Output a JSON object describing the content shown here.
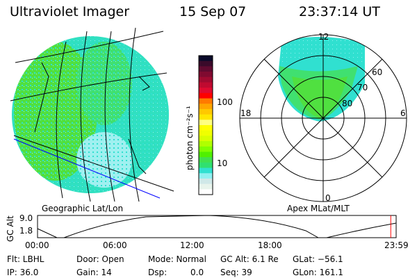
{
  "header": {
    "instrument": "Ultraviolet Imager",
    "date": "15 Sep 07",
    "time": "23:37:14 UT"
  },
  "colorbar": {
    "label": "photon cm⁻²s⁻¹",
    "tick_100": "100",
    "tick_10": "10",
    "colors": [
      "#0a0a2a",
      "#3a0a2a",
      "#600a30",
      "#800a30",
      "#a00a30",
      "#c00a30",
      "#e00a30",
      "#ff0000",
      "#ff7a00",
      "#ffa500",
      "#ffc800",
      "#ffe600",
      "#ffff80",
      "#ffff00",
      "#f0ff00",
      "#d8ff00",
      "#b0ff00",
      "#80ff00",
      "#50f000",
      "#40e050",
      "#30e070",
      "#30e0d0",
      "#90f0f0",
      "#d0e8e8",
      "#e8f4ec",
      "#ffffff"
    ]
  },
  "left_map": {
    "label": "Geographic Lat/Lon"
  },
  "polar": {
    "label": "Apex MLat/MLT",
    "mlt_12": "12",
    "mlt_18": "18",
    "mlt_6": "6",
    "mlt_0": "0",
    "lat_60": "60",
    "lat_70": "70",
    "lat_80": "80"
  },
  "altplot": {
    "ylabel": "GC Alt",
    "ymax": "9.0",
    "ymin": "1.8",
    "xticks": [
      "00:00",
      "06:00",
      "12:00",
      "18:00",
      "23:59"
    ],
    "current_fraction": 0.985
  },
  "info": {
    "flt": "Flt: LBHL",
    "ip": "IP: 36.0",
    "door": "Door: Open",
    "gain": "Gain: 14",
    "mode": "Mode: Normal",
    "dsp_label": "Dsp:",
    "dsp_value": "0.0",
    "gcalt": "GC Alt: 6.1 Re",
    "seq": "Seq: 39",
    "glat": "GLat: −56.1",
    "glon": "GLon: 161.1"
  }
}
